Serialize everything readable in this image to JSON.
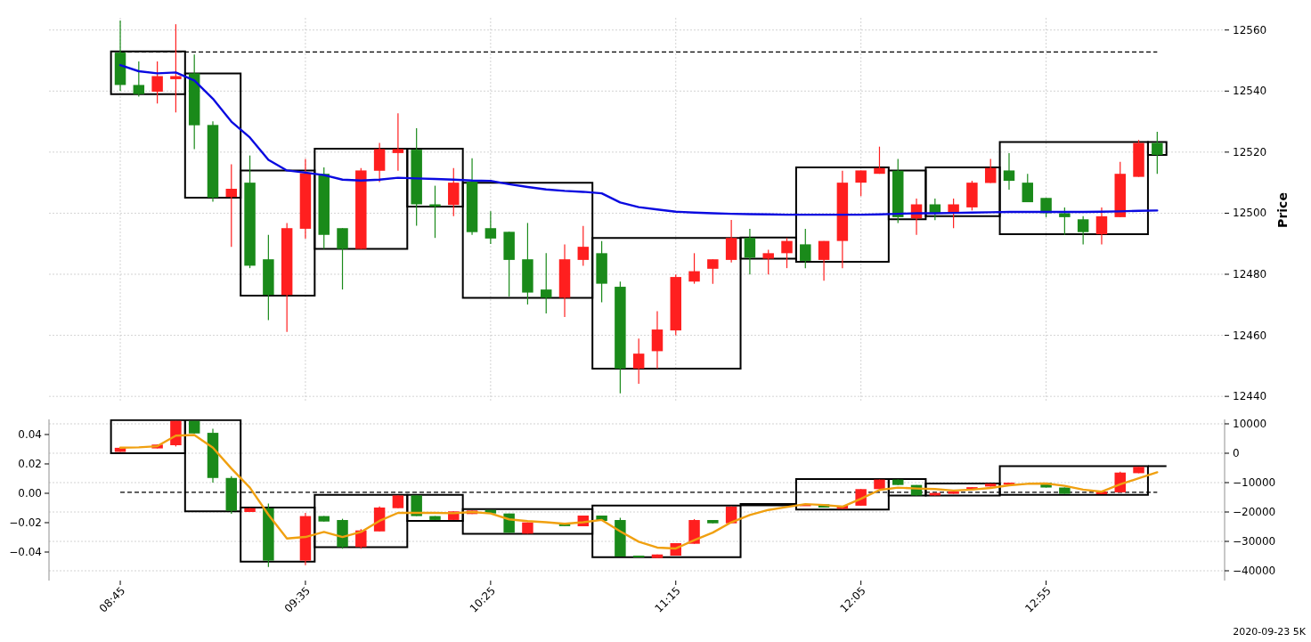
{
  "chart_data": [
    {
      "type": "candlestick",
      "ylabel": "Price",
      "grid": true,
      "tick_labels": "y",
      "x": [
        8.75,
        8.8333,
        8.9167,
        9,
        9.0833,
        9.1667,
        9.25,
        9.3333,
        9.4167,
        9.5,
        9.5833,
        9.6667,
        9.75,
        9.8333,
        9.9167,
        10,
        10.0833,
        10.1667,
        10.25,
        10.3333,
        10.4167,
        10.5,
        10.5833,
        10.6667,
        10.75,
        10.8333,
        10.9167,
        11,
        11.0833,
        11.1667,
        11.25,
        11.3333,
        11.4167,
        11.5,
        11.5833,
        11.6667,
        11.75,
        11.8333,
        11.9167,
        12,
        12.0833,
        12.1667,
        12.25,
        12.3333,
        12.4167,
        12.5,
        12.5833,
        12.6667,
        12.75,
        12.8333,
        12.9167,
        13,
        13.0833,
        13.1667,
        13.25,
        13.3333,
        13.4167
      ],
      "xlim": [
        8.4292,
        13.72
      ],
      "xticks": [
        8.75,
        9.5833,
        10.4167,
        11.25,
        12.0833,
        12.9167
      ],
      "ref_lines": [
        {
          "axis": "y",
          "value": 12552.8,
          "color": "#000000",
          "line_style": "dashed"
        }
      ],
      "ylim": [
        12438,
        12564
      ],
      "yticks": [
        12440,
        12460,
        12480,
        12500,
        12520,
        12540,
        12560
      ],
      "series": [
        {
          "type": "candlestick",
          "ohlc": [
            [
              12552.6,
              12563.1,
              12540,
              12542
            ],
            [
              12542,
              12549.7,
              12538.2,
              12539
            ],
            [
              12539.8,
              12549.7,
              12535.9,
              12544.9
            ],
            [
              12543.9,
              12561.9,
              12533,
              12544.9
            ],
            [
              12545.8,
              12552,
              12521,
              12528.8
            ],
            [
              12528.9,
              12530.1,
              12503.8,
              12505.1
            ],
            [
              12505.3,
              12516,
              12489,
              12508
            ],
            [
              12510,
              12518.9,
              12482,
              12482.8
            ],
            [
              12484.9,
              12492.9,
              12465,
              12473.2
            ],
            [
              12473.2,
              12496.8,
              12461.1,
              12495.1
            ],
            [
              12494.9,
              12517.8,
              12491.7,
              12513.1
            ],
            [
              12512.9,
              12515,
              12488.3,
              12492.9
            ],
            [
              12495.1,
              12495.1,
              12475,
              12488.3
            ],
            [
              12488.3,
              12514.8,
              12488.3,
              12514
            ],
            [
              12513.9,
              12523,
              12510.2,
              12521
            ],
            [
              12519.7,
              12532.7,
              12513.9,
              12521
            ],
            [
              12520.8,
              12527.8,
              12495.9,
              12502.9
            ],
            [
              12502.9,
              12509,
              12491.9,
              12502.2
            ],
            [
              12502.7,
              12514.8,
              12499,
              12510
            ],
            [
              12510.3,
              12518,
              12492.9,
              12493.8
            ],
            [
              12495.1,
              12500.6,
              12489.9,
              12491.7
            ],
            [
              12493.9,
              12493.9,
              12472.7,
              12484.7
            ],
            [
              12484.9,
              12496.8,
              12470.1,
              12474
            ],
            [
              12475,
              12486.9,
              12467.2,
              12472.3
            ],
            [
              12472.3,
              12489.8,
              12466,
              12484.9
            ],
            [
              12484.7,
              12495.8,
              12482.8,
              12489
            ],
            [
              12486.9,
              12490.9,
              12470.8,
              12476.9
            ],
            [
              12475.9,
              12477.6,
              12441,
              12449.1
            ],
            [
              12449.1,
              12458.9,
              12444.1,
              12454
            ],
            [
              12454.8,
              12467.9,
              12449.1,
              12461.9
            ],
            [
              12461.6,
              12479.9,
              12460,
              12479.1
            ],
            [
              12477.6,
              12486.9,
              12476.9,
              12481
            ],
            [
              12481.8,
              12484.9,
              12476.9,
              12484.9
            ],
            [
              12484.7,
              12497.8,
              12483.9,
              12491.9
            ],
            [
              12491.9,
              12494.9,
              12479.9,
              12485.4
            ],
            [
              12485.1,
              12488,
              12479.9,
              12486.9
            ],
            [
              12486.9,
              12491.9,
              12482,
              12490.9
            ],
            [
              12489.8,
              12494.9,
              12482,
              12484.4
            ],
            [
              12484.7,
              12490.9,
              12477.9,
              12490.9
            ],
            [
              12490.9,
              12513.9,
              12482,
              12510
            ],
            [
              12510,
              12514,
              12505.6,
              12514
            ],
            [
              12512.9,
              12521.8,
              12512.9,
              12514.8
            ],
            [
              12513.9,
              12517.8,
              12496.8,
              12498.7
            ],
            [
              12498.3,
              12504.8,
              12492.9,
              12502.9
            ],
            [
              12502.9,
              12504.8,
              12497.7,
              12500
            ],
            [
              12500,
              12504.8,
              12495.1,
              12502.9
            ],
            [
              12501.9,
              12510.6,
              12500.9,
              12510
            ],
            [
              12509.9,
              12517.8,
              12509.9,
              12514.8
            ],
            [
              12514,
              12519.7,
              12507.7,
              12510.6
            ],
            [
              12510,
              12512.9,
              12503.6,
              12503.6
            ],
            [
              12505,
              12505,
              12498.7,
              12500
            ],
            [
              12500,
              12501.9,
              12492.9,
              12498.7
            ],
            [
              12498,
              12499,
              12489.8,
              12493.8
            ],
            [
              12493.1,
              12501.9,
              12489.8,
              12499
            ],
            [
              12498.7,
              12516.8,
              12498.7,
              12512.9
            ],
            [
              12511.9,
              12524,
              12511.9,
              12523
            ],
            [
              12523,
              12526.7,
              12512.9,
              12519.1
            ]
          ],
          "colors": [
            "#1a8a1a",
            "#1a8a1a",
            "#ff1f1f",
            "#ff1f1f",
            "#1a8a1a",
            "#1a8a1a",
            "#ff1f1f",
            "#1a8a1a",
            "#1a8a1a",
            "#ff1f1f",
            "#ff1f1f",
            "#1a8a1a",
            "#1a8a1a",
            "#ff1f1f",
            "#ff1f1f",
            "#ff1f1f",
            "#1a8a1a",
            "#1a8a1a",
            "#ff1f1f",
            "#1a8a1a",
            "#1a8a1a",
            "#1a8a1a",
            "#1a8a1a",
            "#1a8a1a",
            "#ff1f1f",
            "#ff1f1f",
            "#1a8a1a",
            "#1a8a1a",
            "#ff1f1f",
            "#ff1f1f",
            "#ff1f1f",
            "#ff1f1f",
            "#ff1f1f",
            "#ff1f1f",
            "#1a8a1a",
            "#ff1f1f",
            "#ff1f1f",
            "#1a8a1a",
            "#ff1f1f",
            "#ff1f1f",
            "#ff1f1f",
            "#ff1f1f",
            "#1a8a1a",
            "#ff1f1f",
            "#1a8a1a",
            "#ff1f1f",
            "#ff1f1f",
            "#ff1f1f",
            "#1a8a1a",
            "#1a8a1a",
            "#1a8a1a",
            "#1a8a1a",
            "#1a8a1a",
            "#ff1f1f",
            "#ff1f1f",
            "#ff1f1f",
            "#1a8a1a"
          ]
        },
        {
          "type": "line",
          "color": "#0a0ae0",
          "values": [
            12548.5,
            12546.5,
            12545.8,
            12546.1,
            12543.5,
            12537.5,
            12530,
            12524.8,
            12517.5,
            12514,
            12513.3,
            12512.5,
            12511,
            12510.7,
            12511,
            12511.6,
            12511.4,
            12511.2,
            12511,
            12510.7,
            12510.6,
            12509.5,
            12508.6,
            12507.8,
            12507.3,
            12507,
            12506.5,
            12503.5,
            12502,
            12501.2,
            12500.5,
            12500.2,
            12500,
            12499.8,
            12499.7,
            12499.6,
            12499.5,
            12499.5,
            12499.5,
            12499.5,
            12499.5,
            12499.6,
            12499.8,
            12500,
            12500,
            12500.1,
            12500.2,
            12500.3,
            12500.4,
            12500.4,
            12500.4,
            12500.4,
            12500.4,
            12500.5,
            12500.6,
            12500.8,
            12500.9
          ]
        },
        {
          "type": "histogram",
          "color": "#000000",
          "bins": [
            8.7083,
            9.0417,
            9.2917,
            9.625,
            10.0417,
            10.2917,
            10.875,
            11.5417,
            11.7917,
            12.2083,
            12.375,
            12.7083,
            13.375,
            13.4583
          ],
          "base": [
            12539,
            12505.1,
            12473,
            12488.3,
            12502.2,
            12472.3,
            12449.1,
            12485.1,
            12484.1,
            12498,
            12499,
            12493.1,
            12519.1
          ],
          "values": [
            14,
            40.7,
            41,
            32.8,
            18.9,
            37.7,
            42.8,
            6.9,
            30.9,
            16,
            16,
            30.2,
            4.2
          ]
        }
      ]
    },
    {
      "type": "candlestick",
      "grid": "y2",
      "annotations": [
        "2020-09-23 5K"
      ],
      "x": [
        8.75,
        8.8333,
        8.9167,
        9,
        9.0833,
        9.1667,
        9.25,
        9.3333,
        9.4167,
        9.5,
        9.5833,
        9.6667,
        9.75,
        9.8333,
        9.9167,
        10,
        10.0833,
        10.1667,
        10.25,
        10.3333,
        10.4167,
        10.5,
        10.5833,
        10.6667,
        10.75,
        10.8333,
        10.9167,
        11,
        11.0833,
        11.1667,
        11.25,
        11.3333,
        11.4167,
        11.5,
        11.5833,
        11.6667,
        11.75,
        11.8333,
        11.9167,
        12,
        12.0833,
        12.1667,
        12.25,
        12.3333,
        12.4167,
        12.5,
        12.5833,
        12.6667,
        12.75,
        12.8333,
        12.9167,
        13,
        13.0833,
        13.1667,
        13.25,
        13.3333,
        13.4167
      ],
      "xlim": [
        8.4292,
        13.72
      ],
      "xticks": [
        {
          "value": 8.75,
          "label": "08:45"
        },
        {
          "value": 9.5833,
          "label": "09:35"
        },
        {
          "value": 10.4167,
          "label": "10:25"
        },
        {
          "value": 11.25,
          "label": "11:15"
        },
        {
          "value": 12.0833,
          "label": "12:05"
        },
        {
          "value": 12.9167,
          "label": "12:55"
        }
      ],
      "ref_lines": [
        {
          "axis": "y2",
          "value": -13300,
          "color": "#000000",
          "line_style": "dashed"
        }
      ],
      "ylim": [
        -0.0594,
        0.0503
      ],
      "yticks": [
        {
          "value": -0.04,
          "label": "−0.04"
        },
        {
          "value": -0.02,
          "label": "−0.02"
        },
        {
          "value": 0,
          "label": "0.00"
        },
        0.02,
        0.04
      ],
      "y2lim": [
        -43330,
        11515
      ],
      "y2ticks": [
        {
          "value": -40000,
          "label": "−40000"
        },
        {
          "value": -30000,
          "label": "−30000"
        },
        {
          "value": -20000,
          "label": "−20000"
        },
        {
          "value": -10000,
          "label": "−10000"
        },
        0,
        10000
      ],
      "series": [
        {
          "type": "candlestick",
          "axis": "y2",
          "ohlc": [
            [
              450,
              1850,
              450,
              1850
            ],
            null,
            [
              1640,
              2940,
              1640,
              2940
            ],
            [
              2727,
              11000,
              2300,
              11000
            ],
            [
              11000,
              11000,
              6730,
              6730
            ],
            [
              6940,
              8360,
              -10030,
              -8420
            ],
            [
              -8420,
              -7800,
              -20640,
              -19570
            ],
            [
              -20000,
              -18700,
              -20000,
              -18700
            ],
            [
              -18700,
              -17090,
              -38720,
              -36540
            ],
            null,
            [
              -36540,
              -20300,
              -38100,
              -21390
            ],
            [
              -21390,
              -21390,
              -23240,
              -23240
            ],
            [
              -22730,
              -22300,
              -32500,
              -31910
            ],
            [
              -31910,
              -25800,
              -32500,
              -26270
            ],
            [
              -26600,
              -18100,
              -26600,
              -18480
            ],
            [
              -18700,
              -14360,
              -18700,
              -14360
            ],
            [
              -14360,
              -14360,
              -21390,
              -21390
            ],
            [
              -21390,
              -21390,
              -22700,
              -22700
            ],
            [
              -22700,
              -19790,
              -22700,
              -19790
            ],
            [
              -20700,
              -19500,
              -20700,
              -19500
            ],
            [
              -19300,
              -19300,
              -20500,
              -20500
            ],
            [
              -20500,
              -20500,
              -27060,
              -27060
            ],
            [
              -27370,
              -23540,
              -27370,
              -23540
            ],
            null,
            [
              -24200,
              -24200,
              -24800,
              -24800
            ],
            [
              -24850,
              -21210,
              -24850,
              -21210
            ],
            [
              -21210,
              -21210,
              -23030,
              -23030
            ],
            [
              -22730,
              -22000,
              -35150,
              -35150
            ],
            [
              -34850,
              -34850,
              -35240,
              -35240
            ],
            [
              -35660,
              -34450,
              -35660,
              -34450
            ],
            [
              -34850,
              -30600,
              -34850,
              -30600
            ],
            [
              -30810,
              -22400,
              -30810,
              -22730
            ],
            [
              -22730,
              -22730,
              -23840,
              -23840
            ],
            [
              -23840,
              -18000,
              -23840,
              -18180
            ],
            null,
            null,
            null,
            [
              -17900,
              -17400,
              -17900,
              -17400
            ],
            [
              -17390,
              -17390,
              -18480,
              -18480
            ],
            [
              -18910,
              -17850,
              -18910,
              -17850
            ],
            [
              -17850,
              -12210,
              -17850,
              -12210
            ],
            [
              -12210,
              -8970,
              -12210,
              -8970
            ],
            [
              -8970,
              -8970,
              -10800,
              -10800
            ],
            [
              -10800,
              -10800,
              -14360,
              -14360
            ],
            [
              -14360,
              -13510,
              -14360,
              -13510
            ],
            [
              -13820,
              -12970,
              -13820,
              -12970
            ],
            [
              -12420,
              -11550,
              -12420,
              -11550
            ],
            [
              -11330,
              -10360,
              -11330,
              -10360
            ],
            [
              -10700,
              -10030,
              -10700,
              -10030
            ],
            null,
            [
              -10030,
              -10030,
              -11670,
              -11670
            ],
            [
              -11670,
              -11670,
              -13820,
              -13820
            ],
            null,
            [
              -13940,
              -13060,
              -13940,
              -13060
            ],
            [
              -13300,
              -6300,
              -13300,
              -6580
            ],
            [
              -6790,
              -4640,
              -6790,
              -4640
            ],
            null
          ],
          "colors": [
            "#ff1f1f",
            null,
            "#ff1f1f",
            "#ff1f1f",
            "#1a8a1a",
            "#1a8a1a",
            "#1a8a1a",
            "#ff1f1f",
            "#1a8a1a",
            null,
            "#ff1f1f",
            "#1a8a1a",
            "#1a8a1a",
            "#ff1f1f",
            "#ff1f1f",
            "#ff1f1f",
            "#1a8a1a",
            "#1a8a1a",
            "#ff1f1f",
            "#ff1f1f",
            "#1a8a1a",
            "#1a8a1a",
            "#ff1f1f",
            null,
            "#1a8a1a",
            "#ff1f1f",
            "#1a8a1a",
            "#1a8a1a",
            "#1a8a1a",
            "#ff1f1f",
            "#ff1f1f",
            "#ff1f1f",
            "#1a8a1a",
            "#ff1f1f",
            null,
            null,
            null,
            "#ff1f1f",
            "#1a8a1a",
            "#ff1f1f",
            "#ff1f1f",
            "#ff1f1f",
            "#1a8a1a",
            "#1a8a1a",
            "#ff1f1f",
            "#ff1f1f",
            "#ff1f1f",
            "#ff1f1f",
            "#ff1f1f",
            null,
            "#1a8a1a",
            "#1a8a1a",
            null,
            "#ff1f1f",
            "#ff1f1f",
            "#ff1f1f",
            null
          ]
        },
        {
          "type": "line",
          "axis": "y2",
          "color": "#f0a010",
          "values": [
            1900,
            2000,
            2400,
            6000,
            6200,
            1900,
            -5200,
            -11700,
            -20900,
            -29000,
            -28500,
            -26800,
            -28500,
            -26800,
            -23000,
            -20300,
            -20300,
            -20300,
            -20400,
            -20000,
            -20500,
            -22500,
            -23100,
            -23500,
            -24000,
            -23500,
            -22700,
            -26600,
            -30100,
            -32100,
            -32400,
            -29600,
            -27000,
            -23500,
            -21000,
            -19300,
            -18300,
            -17300,
            -17600,
            -18200,
            -15500,
            -12500,
            -11700,
            -12000,
            -12200,
            -12700,
            -12400,
            -11800,
            -10900,
            -10400,
            -10300,
            -11100,
            -12400,
            -13100,
            -10600,
            -8500,
            -6500
          ]
        },
        {
          "type": "histogram",
          "axis": "y2",
          "color": "#000000",
          "bins": [
            8.7083,
            9.0417,
            9.2917,
            9.625,
            10.0417,
            10.2917,
            10.875,
            11.5417,
            11.7917,
            12.2083,
            12.375,
            12.7083,
            13.375,
            13.4583
          ],
          "base": [
            0,
            -19800,
            -36900,
            -32000,
            -23000,
            -27400,
            -35400,
            -17700,
            -19200,
            -14400,
            -14400,
            -14200,
            -4400
          ],
          "values": [
            11300,
            31100,
            18400,
            17800,
            8800,
            8400,
            17600,
            400,
            10400,
            5600,
            4100,
            9800,
            0
          ]
        }
      ]
    }
  ]
}
